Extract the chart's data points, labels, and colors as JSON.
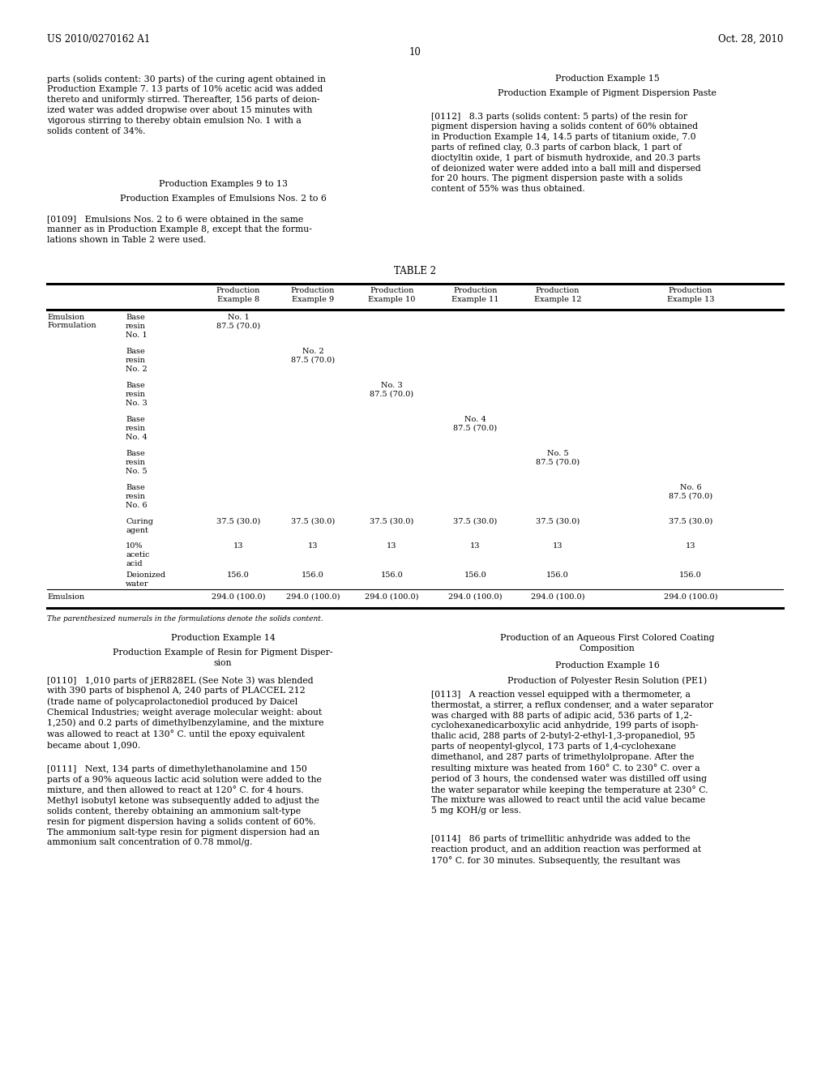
{
  "page_number": "10",
  "patent_number": "US 2010/0270162 A1",
  "patent_date": "Oct. 28, 2010",
  "background_color": "#ffffff",
  "text_color": "#000000",
  "left_col_top": "parts (solids content: 30 parts) of the curing agent obtained in\nProduction Example 7. 13 parts of 10% acetic acid was added\nthereto and uniformly stirred. Thereafter, 156 parts of deion-\nized water was added dropwise over about 15 minutes with\nvigorous stirring to thereby obtain emulsion No. 1 with a\nsolids content of 34%.",
  "left_sec1": "Production Examples 9 to 13",
  "left_sec2": "Production Examples of Emulsions Nos. 2 to 6",
  "para0109": "[0109]   Emulsions Nos. 2 to 6 were obtained in the same\nmanner as in Production Example 8, except that the formu-\nlations shown in Table 2 were used.",
  "right_sec1": "Production Example 15",
  "right_sec2": "Production Example of Pigment Dispersion Paste",
  "para0112": "[0112]   8.3 parts (solids content: 5 parts) of the resin for\npigment dispersion having a solids content of 60% obtained\nin Production Example 14, 14.5 parts of titanium oxide, 7.0\nparts of refined clay, 0.3 parts of carbon black, 1 part of\ndioctyltin oxide, 1 part of bismuth hydroxide, and 20.3 parts\nof deionized water were added into a ball mill and dispersed\nfor 20 hours. The pigment dispersion paste with a solids\ncontent of 55% was thus obtained.",
  "table_title": "TABLE 2",
  "table_footnote": "The parenthesized numerals in the formulations denote the solids content.",
  "col_headers": [
    "Production\nExample 8",
    "Production\nExample 9",
    "Production\nExample 10",
    "Production\nExample 11",
    "Production\nExample 12",
    "Production\nExample 13"
  ],
  "base_resin_labels": [
    "Base\nresin\nNo. 1",
    "Base\nresin\nNo. 2",
    "Base\nresin\nNo. 3",
    "Base\nresin\nNo. 4",
    "Base\nresin\nNo. 5",
    "Base\nresin\nNo. 6"
  ],
  "emulsion_nos": [
    "No. 1",
    "No. 2",
    "No. 3",
    "No. 4",
    "No. 5",
    "No. 6"
  ],
  "base_resin_val": "87.5 (70.0)",
  "curing_data": [
    "37.5 (30.0)",
    "37.5 (30.0)",
    "37.5 (30.0)",
    "37.5 (30.0)",
    "37.5 (30.0)",
    "37.5 (30.0)"
  ],
  "acetic_data": [
    "13",
    "13",
    "13",
    "13",
    "13",
    "13"
  ],
  "deion_data": [
    "156.0",
    "156.0",
    "156.0",
    "156.0",
    "156.0",
    "156.0"
  ],
  "emulsion_data": [
    "294.0 (100.0)",
    "294.0 (100.0)",
    "294.0 (100.0)",
    "294.0 (100.0)",
    "294.0 (100.0)",
    "294.0 (100.0)"
  ],
  "bl_title1": "Production Example 14",
  "bl_title2": "Production Example of Resin for Pigment Disper-\nsion",
  "para0110": "[0110]   1,010 parts of jER828EL (See Note 3) was blended\nwith 390 parts of bisphenol A, 240 parts of PLACCEL 212\n(trade name of polycaprolactonediol produced by Daicel\nChemical Industries; weight average molecular weight: about\n1,250) and 0.2 parts of dimethylbenzylamine, and the mixture\nwas allowed to react at 130° C. until the epoxy equivalent\nbecame about 1,090.",
  "para0111": "[0111]   Next, 134 parts of dimethylethanolamine and 150\nparts of a 90% aqueous lactic acid solution were added to the\nmixture, and then allowed to react at 120° C. for 4 hours.\nMethyl isobutyl ketone was subsequently added to adjust the\nsolids content, thereby obtaining an ammonium salt-type\nresin for pigment dispersion having a solids content of 60%.\nThe ammonium salt-type resin for pigment dispersion had an\nammonium salt concentration of 0.78 mmol/g.",
  "br_title1": "Production of an Aqueous First Colored Coating\nComposition",
  "br_title2": "Production Example 16",
  "br_title3": "Production of Polyester Resin Solution (PE1)",
  "para0113": "[0113]   A reaction vessel equipped with a thermometer, a\nthermostat, a stirrer, a reflux condenser, and a water separator\nwas charged with 88 parts of adipic acid, 536 parts of 1,2-\ncyclohexanedicarboxylic acid anhydride, 199 parts of isoph-\nthalic acid, 288 parts of 2-butyl-2-ethyl-1,3-propanediol, 95\nparts of neopentyl-glycol, 173 parts of 1,4-cyclohexane\ndimethanol, and 287 parts of trimethylolpropane. After the\nresulting mixture was heated from 160° C. to 230° C. over a\nperiod of 3 hours, the condensed water was distilled off using\nthe water separator while keeping the temperature at 230° C.\nThe mixture was allowed to react until the acid value became\n5 mg KOH/g or less.",
  "para0114": "[0114]   86 parts of trimellitic anhydride was added to the\nreaction product, and an addition reaction was performed at\n170° C. for 30 minutes. Subsequently, the resultant was"
}
